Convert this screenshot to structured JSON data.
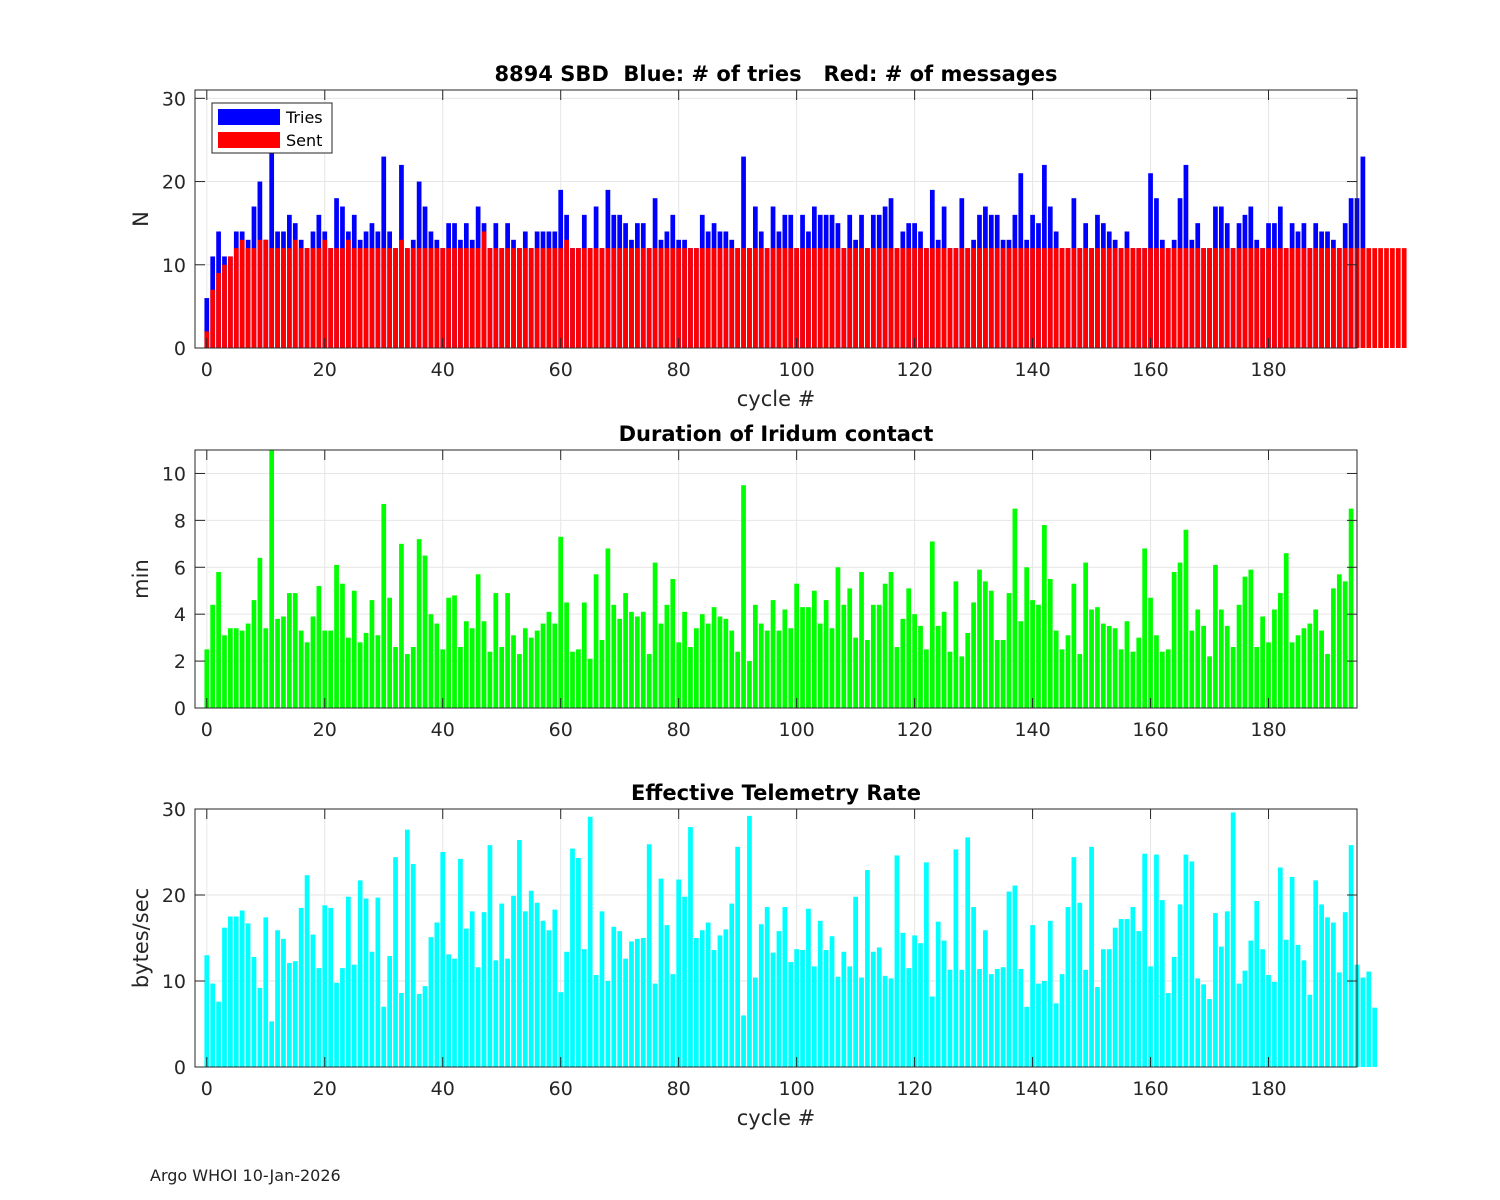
{
  "footer": "Argo WHOI 10-Jan-2026",
  "colors": {
    "tries": "#0000ff",
    "sent": "#ff0000",
    "duration": "#00ff00",
    "rate": "#00ffff"
  },
  "chart_data": [
    {
      "type": "bar",
      "title": "8894 SBD  Blue: # of tries   Red: # of messages",
      "xlabel": "cycle #",
      "ylabel": "N",
      "xlim": [
        -2,
        195
      ],
      "ylim": [
        0,
        31
      ],
      "xticks": [
        0,
        20,
        40,
        60,
        80,
        100,
        120,
        140,
        160,
        180
      ],
      "yticks": [
        0,
        10,
        20,
        30
      ],
      "legend": {
        "location": "top-left",
        "entries": [
          "Tries",
          "Sent"
        ]
      },
      "x_start": 0,
      "series": [
        {
          "name": "Tries",
          "color": "#0000ff",
          "values": [
            6,
            11,
            14,
            11,
            11,
            14,
            14,
            13,
            17,
            20,
            13,
            24,
            14,
            14,
            16,
            15,
            13,
            12,
            14,
            16,
            14,
            12,
            18,
            17,
            14,
            16,
            13,
            14,
            15,
            14,
            23,
            14,
            12,
            22,
            12,
            13,
            20,
            17,
            14,
            13,
            12,
            15,
            15,
            13,
            15,
            13,
            17,
            15,
            12,
            15,
            12,
            15,
            13,
            12,
            14,
            12,
            14,
            14,
            14,
            14,
            19,
            16,
            12,
            12,
            16,
            12,
            17,
            12,
            19,
            16,
            16,
            15,
            13,
            15,
            15,
            12,
            18,
            13,
            14,
            16,
            13,
            13,
            12,
            12,
            16,
            14,
            15,
            14,
            14,
            13,
            12,
            23,
            12,
            17,
            14,
            12,
            17,
            14,
            16,
            16,
            12,
            16,
            14,
            17,
            16,
            16,
            16,
            15,
            12,
            16,
            13,
            16,
            12,
            16,
            16,
            17,
            18,
            12,
            14,
            15,
            15,
            14,
            12,
            19,
            13,
            17,
            12,
            12,
            18,
            12,
            13,
            16,
            17,
            16,
            16,
            13,
            13,
            16,
            21,
            13,
            16,
            15,
            22,
            17,
            14,
            12,
            12,
            18,
            12,
            15,
            12,
            16,
            15,
            14,
            13,
            12,
            14,
            12,
            12,
            12,
            21,
            18,
            13,
            12,
            13,
            18,
            22,
            13,
            15,
            12,
            12,
            17,
            17,
            15,
            12,
            15,
            16,
            17,
            13,
            12,
            15,
            15,
            17,
            12,
            15,
            14,
            15,
            12,
            15,
            14,
            14,
            13,
            12,
            15,
            18,
            18,
            23
          ]
        },
        {
          "name": "Sent",
          "color": "#ff0000",
          "values": [
            2,
            7,
            9,
            10,
            11,
            12,
            13,
            12,
            12,
            13,
            13,
            12,
            12,
            12,
            12,
            13,
            12,
            12,
            12,
            12,
            13,
            12,
            12,
            12,
            13,
            12,
            12,
            12,
            12,
            12,
            12,
            12,
            12,
            13,
            12,
            12,
            12,
            12,
            12,
            12,
            12,
            12,
            12,
            12,
            12,
            12,
            12,
            14,
            12,
            12,
            12,
            12,
            12,
            12,
            12,
            12,
            12,
            12,
            12,
            12,
            12,
            13,
            12,
            12,
            12,
            12,
            12,
            12,
            12,
            12,
            12,
            12,
            12,
            12,
            12,
            12,
            12,
            12,
            12,
            12,
            12,
            12,
            12,
            12,
            12,
            12,
            12,
            12,
            12,
            12,
            12,
            12,
            12,
            12,
            12,
            12,
            12,
            12,
            12,
            12,
            12,
            12,
            12,
            12,
            12,
            12,
            12,
            12,
            12,
            12,
            12,
            12,
            12,
            12,
            12,
            12,
            12,
            12,
            12,
            12,
            12,
            12,
            12,
            12,
            12,
            12,
            12,
            12,
            12,
            12,
            12,
            12,
            12,
            12,
            12,
            12,
            12,
            12,
            12,
            12,
            12,
            12,
            12,
            12,
            12,
            12,
            12,
            12,
            12,
            12,
            12,
            12,
            12,
            12,
            12,
            12,
            12,
            12,
            12,
            12,
            12,
            12,
            12,
            12,
            12,
            12,
            12,
            12,
            12,
            12,
            12,
            12,
            12,
            12,
            12,
            12,
            12,
            12,
            12,
            12,
            12,
            12,
            12,
            12,
            12,
            12,
            12,
            12,
            12,
            12,
            12,
            12,
            12,
            12,
            12,
            12,
            12,
            12,
            12,
            12,
            12,
            12,
            12,
            12
          ]
        }
      ]
    },
    {
      "type": "bar",
      "title": "Duration of Iridum contact",
      "xlabel": "",
      "ylabel": "min",
      "xlim": [
        -2,
        195
      ],
      "ylim": [
        0,
        11
      ],
      "xticks": [
        0,
        20,
        40,
        60,
        80,
        100,
        120,
        140,
        160,
        180
      ],
      "yticks": [
        0,
        2,
        4,
        6,
        8,
        10
      ],
      "x_start": 0,
      "series": [
        {
          "name": "Duration",
          "color": "#00ff00",
          "values": [
            2.5,
            4.4,
            5.8,
            3.1,
            3.4,
            3.4,
            3.3,
            3.6,
            4.6,
            6.4,
            3.4,
            11,
            3.8,
            3.9,
            4.9,
            4.9,
            3.3,
            2.8,
            3.9,
            5.2,
            3.3,
            3.3,
            6.1,
            5.3,
            3.0,
            5.0,
            2.8,
            3.2,
            4.6,
            3.1,
            8.7,
            4.7,
            2.6,
            7.0,
            2.3,
            2.6,
            7.2,
            6.5,
            4.0,
            3.6,
            2.5,
            4.7,
            4.8,
            2.6,
            3.7,
            3.4,
            5.7,
            3.7,
            2.4,
            4.9,
            2.6,
            4.9,
            3.1,
            2.3,
            3.4,
            3.0,
            3.3,
            3.6,
            4.1,
            3.6,
            7.3,
            4.5,
            2.4,
            2.5,
            4.5,
            2.1,
            5.7,
            2.9,
            6.8,
            4.4,
            3.8,
            4.9,
            4.1,
            3.9,
            4.1,
            2.3,
            6.2,
            3.6,
            4.4,
            5.5,
            2.8,
            4.1,
            2.6,
            3.4,
            4.0,
            3.6,
            4.3,
            3.9,
            3.8,
            3.3,
            2.4,
            9.5,
            2.0,
            4.4,
            3.6,
            3.3,
            4.6,
            3.3,
            4.2,
            3.4,
            5.3,
            4.3,
            4.3,
            5.0,
            3.6,
            4.6,
            3.4,
            6.0,
            4.4,
            5.1,
            3.0,
            5.8,
            2.9,
            4.4,
            4.4,
            5.3,
            5.8,
            2.6,
            3.8,
            5.1,
            4.0,
            3.5,
            2.5,
            7.1,
            3.5,
            4.1,
            2.4,
            5.4,
            2.2,
            3.2,
            4.5,
            5.9,
            5.4,
            5.0,
            2.9,
            2.9,
            4.9,
            8.5,
            3.7,
            6.0,
            4.6,
            4.4,
            7.8,
            5.5,
            3.3,
            2.5,
            3.1,
            5.3,
            2.3,
            6.2,
            4.2,
            4.3,
            3.6,
            3.5,
            3.4,
            2.5,
            3.7,
            2.4,
            3.0,
            6.8,
            4.7,
            3.1,
            2.4,
            2.5,
            5.8,
            6.2,
            7.6,
            3.3,
            4.2,
            3.5,
            2.2,
            6.1,
            4.2,
            3.5,
            2.6,
            4.4,
            5.6,
            5.9,
            2.6,
            3.9,
            2.8,
            4.2,
            4.9,
            6.6,
            2.8,
            3.1,
            3.4,
            3.6,
            4.2,
            3.3,
            2.3,
            5.1,
            5.7,
            5.4,
            8.5
          ]
        }
      ]
    },
    {
      "type": "bar",
      "title": "Effective Telemetry Rate",
      "xlabel": "cycle #",
      "ylabel": "bytes/sec",
      "xlim": [
        -2,
        195
      ],
      "ylim": [
        0,
        30
      ],
      "xticks": [
        0,
        20,
        40,
        60,
        80,
        100,
        120,
        140,
        160,
        180
      ],
      "yticks": [
        0,
        10,
        20,
        30
      ],
      "x_start": 0,
      "series": [
        {
          "name": "Rate",
          "color": "#00ffff",
          "values": [
            13.0,
            9.7,
            7.6,
            16.2,
            17.5,
            17.5,
            18.2,
            16.7,
            12.8,
            9.2,
            17.4,
            5.3,
            15.9,
            14.9,
            12.1,
            12.3,
            18.5,
            22.3,
            15.4,
            11.5,
            18.8,
            18.5,
            9.8,
            11.5,
            19.8,
            11.9,
            21.7,
            19.6,
            13.4,
            19.7,
            7.0,
            12.9,
            24.4,
            8.6,
            27.6,
            23.6,
            8.5,
            9.4,
            15.1,
            16.8,
            25.0,
            13.1,
            12.6,
            24.2,
            16.1,
            18.1,
            11.6,
            18.0,
            25.8,
            12.4,
            19.0,
            12.6,
            19.9,
            26.4,
            18.1,
            20.5,
            19.1,
            17.0,
            15.9,
            18.3,
            8.7,
            13.4,
            25.4,
            24.3,
            13.7,
            29.1,
            10.7,
            18.1,
            10.0,
            16.3,
            15.8,
            12.6,
            14.6,
            14.9,
            15.0,
            25.9,
            9.7,
            21.9,
            16.5,
            10.8,
            21.8,
            19.8,
            27.9,
            15.0,
            15.9,
            16.8,
            13.6,
            15.3,
            16.0,
            19.0,
            25.6,
            6.0,
            29.2,
            10.4,
            16.6,
            18.6,
            13.3,
            15.8,
            18.6,
            12.2,
            13.7,
            13.6,
            18.4,
            11.7,
            17.0,
            13.6,
            15.2,
            10.5,
            13.4,
            11.7,
            19.8,
            10.4,
            22.9,
            13.4,
            13.9,
            10.6,
            10.3,
            24.6,
            15.6,
            11.5,
            15.3,
            14.4,
            23.8,
            8.2,
            16.9,
            14.7,
            11.3,
            25.3,
            11.3,
            26.7,
            18.6,
            11.4,
            15.9,
            10.8,
            11.4,
            11.6,
            20.4,
            21.1,
            11.4,
            7.0,
            16.5,
            9.7,
            10.0,
            17.0,
            7.4,
            10.8,
            18.6,
            24.4,
            19.1,
            11.3,
            25.6,
            9.3,
            13.7,
            13.7,
            16.2,
            17.2,
            17.2,
            18.6,
            15.8,
            24.8,
            11.7,
            24.7,
            19.4,
            8.6,
            12.8,
            18.9,
            24.7,
            23.9,
            10.3,
            9.6,
            7.9,
            17.9,
            14.0,
            18.1,
            29.6,
            9.7,
            11.2,
            14.7,
            19.3,
            13.7,
            10.7,
            9.9,
            23.2,
            14.8,
            22.1,
            14.2,
            12.4,
            8.4,
            21.7,
            18.9,
            17.4,
            16.8,
            11.0,
            18.0,
            25.8,
            11.9,
            10.4,
            11.1,
            6.9
          ]
        }
      ]
    }
  ]
}
